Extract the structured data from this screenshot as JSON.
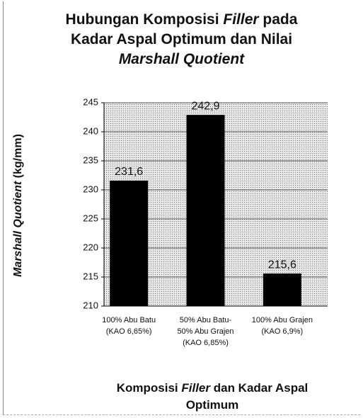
{
  "chart_data": {
    "type": "bar",
    "title": [
      "Hubungan Komposisi",
      "Filler",
      "pada",
      "Kadar Aspal Optimum dan Nilai",
      "Marshall Quotient"
    ],
    "ylabel": [
      "Marshall Quotient",
      "(kg/mm)"
    ],
    "xlabel": [
      "Komposisi",
      "Filler",
      "dan Kadar Aspal",
      "Optimum"
    ],
    "categories": [
      "100% Abu Batu\n(KAO 6,65%)",
      "50% Abu Batu-\n50% Abu Grajen\n(KAO 6,85%)",
      "100% Abu Grajen\n(KAO 6,9%)"
    ],
    "values": [
      231.6,
      242.9,
      215.6
    ],
    "value_labels": [
      "231,6",
      "242,9",
      "215,6"
    ],
    "color": "#000000",
    "ylim": [
      210,
      245
    ],
    "yticks": [
      210,
      215,
      220,
      225,
      230,
      235,
      240,
      245
    ],
    "grid": true
  }
}
